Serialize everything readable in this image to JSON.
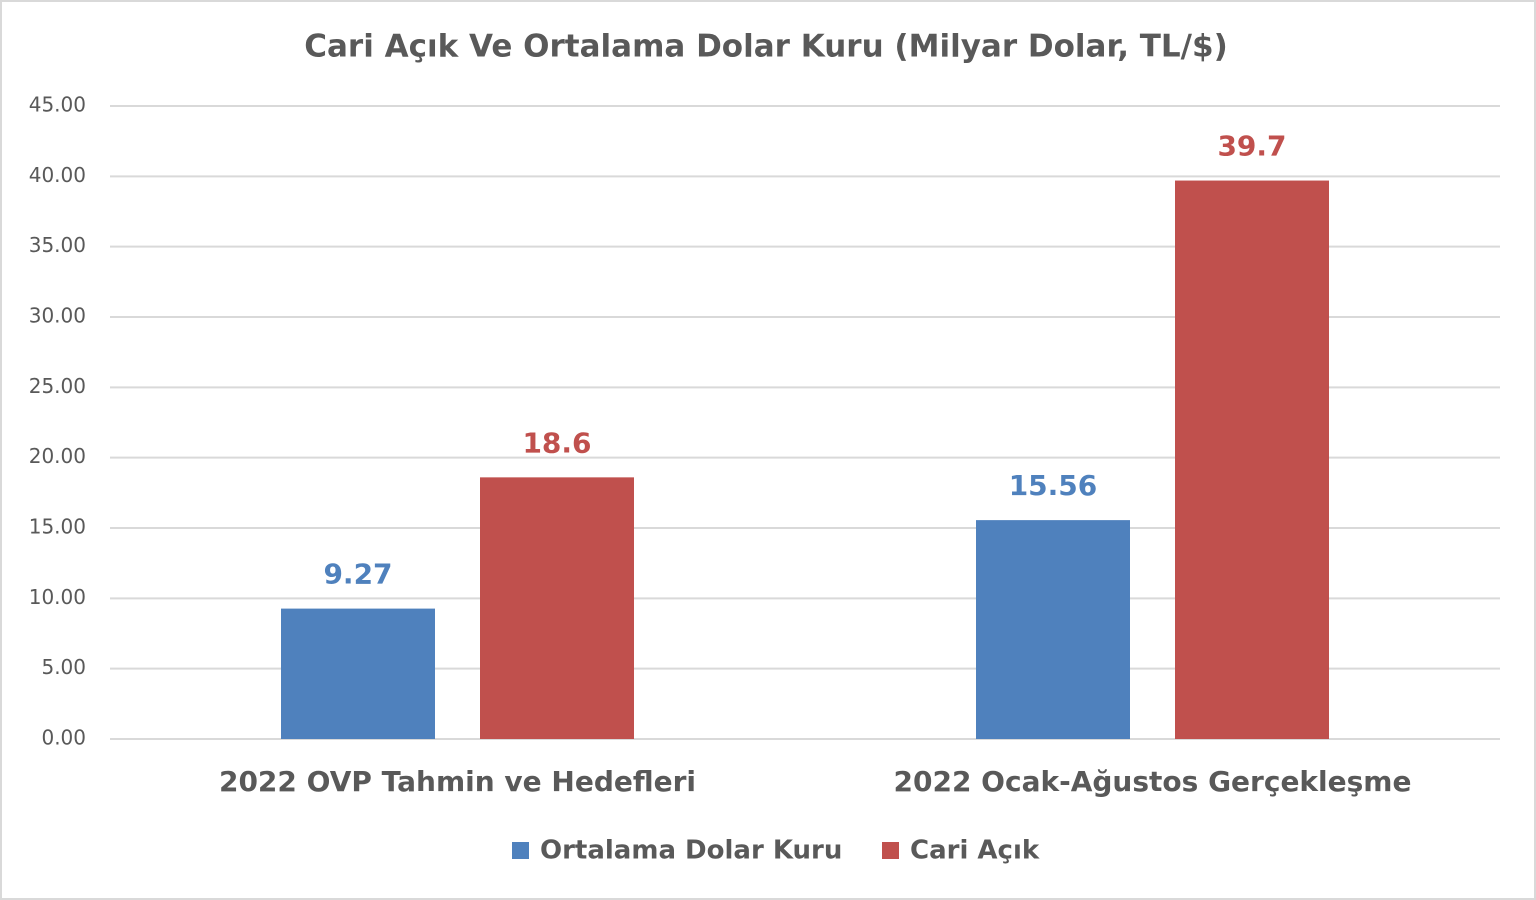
{
  "chart_data": {
    "type": "bar",
    "title": "Cari Açık Ve Ortalama Dolar Kuru (Milyar Dolar,  TL/$)",
    "categories": [
      "2022 OVP Tahmin ve Hedefleri",
      "2022 Ocak-Ağustos Gerçekleşme"
    ],
    "series": [
      {
        "name": "Ortalama Dolar Kuru",
        "color": "#4f81bd",
        "values": [
          9.27,
          15.56
        ]
      },
      {
        "name": "Cari Açık",
        "color": "#c0504d",
        "values": [
          18.6,
          39.7
        ]
      }
    ],
    "ylim": [
      0,
      45
    ],
    "yticks": [
      {
        "value": 0,
        "label": "0.00"
      },
      {
        "value": 5,
        "label": "5.00"
      },
      {
        "value": 10,
        "label": "10.00"
      },
      {
        "value": 15,
        "label": "15.00"
      },
      {
        "value": 20,
        "label": "20.00"
      },
      {
        "value": 25,
        "label": "25.00"
      },
      {
        "value": 30,
        "label": "30.00"
      },
      {
        "value": 35,
        "label": "35.00"
      },
      {
        "value": 40,
        "label": "40.00"
      },
      {
        "value": 45,
        "label": "45.00"
      }
    ],
    "grid": true,
    "legend": "bottom"
  }
}
